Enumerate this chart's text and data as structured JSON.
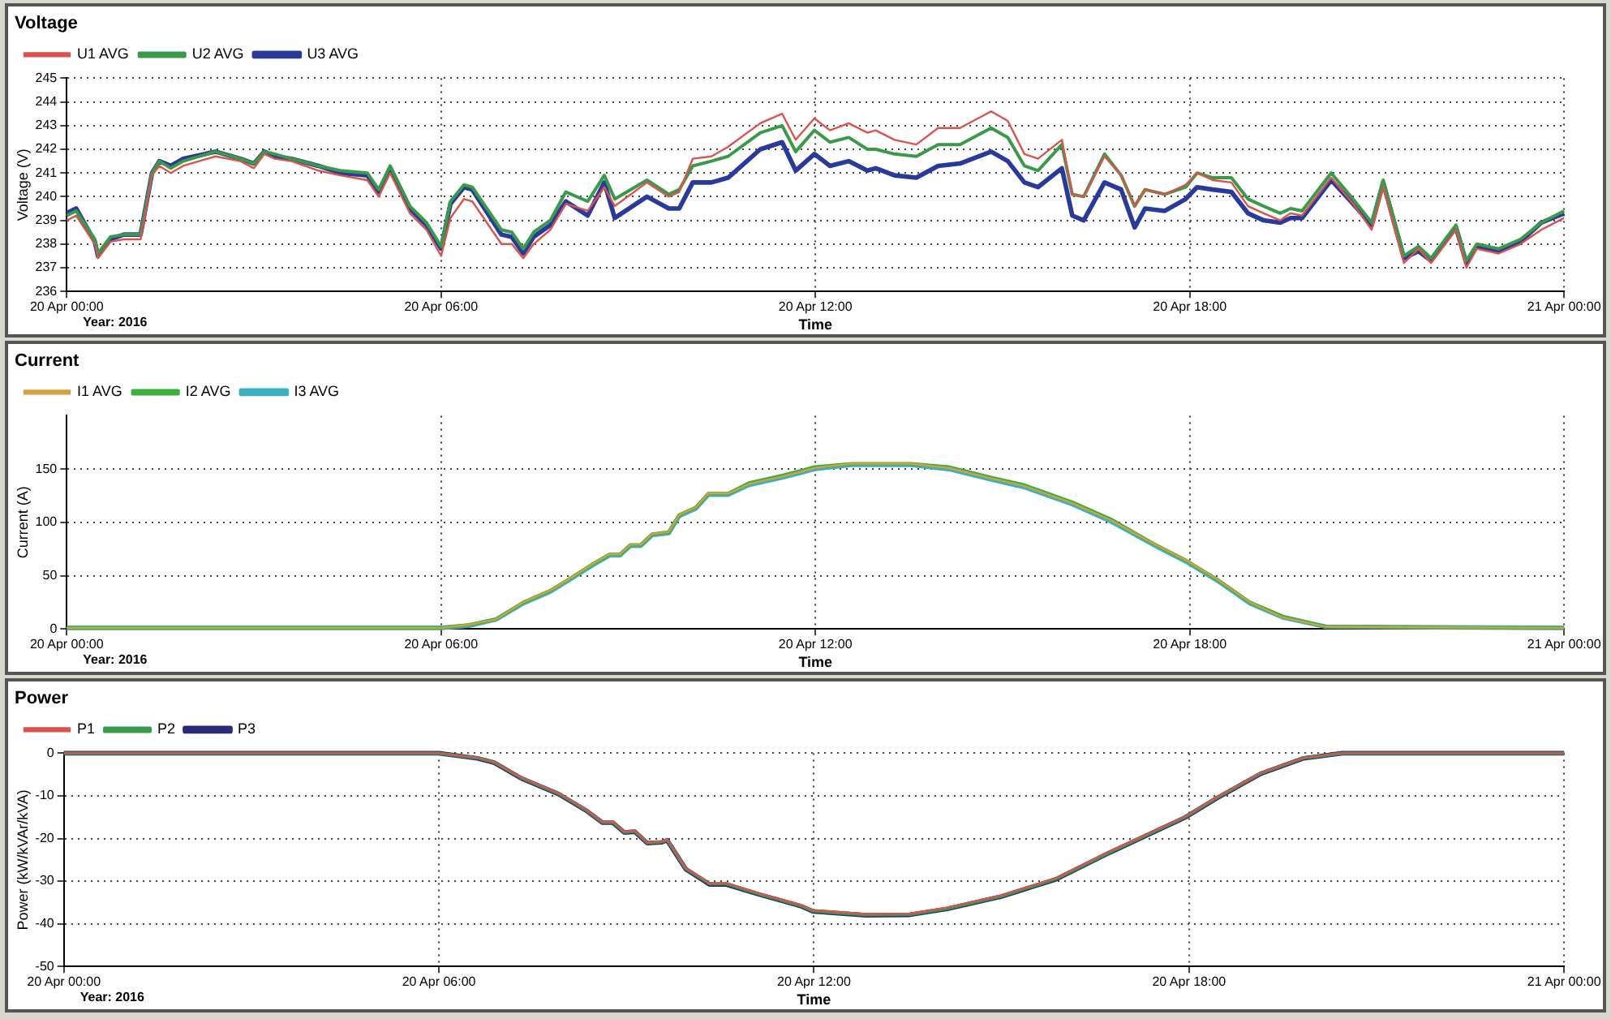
{
  "chart_data": [
    {
      "type": "line",
      "title": "Voltage",
      "xlabel": "Time",
      "ylabel": "Voltage (V)",
      "annotations": [
        "Year: 2016"
      ],
      "x": [
        "2016-04-20T00:00",
        "2016-04-20T00:09",
        "2016-04-20T00:27",
        "2016-04-20T00:30",
        "2016-04-20T00:42",
        "2016-04-20T00:55",
        "2016-04-20T01:11",
        "2016-04-20T01:22",
        "2016-04-20T01:29",
        "2016-04-20T01:40",
        "2016-04-20T01:52",
        "2016-04-20T02:23",
        "2016-04-20T02:47",
        "2016-04-20T03:00",
        "2016-04-20T03:10",
        "2016-04-20T03:20",
        "2016-04-20T03:36",
        "2016-04-20T04:02",
        "2016-04-20T04:23",
        "2016-04-20T04:49",
        "2016-04-20T05:00",
        "2016-04-20T05:11",
        "2016-04-20T05:30",
        "2016-04-20T05:46",
        "2016-04-20T06:00",
        "2016-04-20T06:09",
        "2016-04-20T06:22",
        "2016-04-20T06:30",
        "2016-04-20T06:58",
        "2016-04-20T07:08",
        "2016-04-20T07:19",
        "2016-04-20T07:29",
        "2016-04-20T07:45",
        "2016-04-20T08:00",
        "2016-04-20T08:21",
        "2016-04-20T08:37",
        "2016-04-20T08:47",
        "2016-04-20T09:18",
        "2016-04-20T09:39",
        "2016-04-20T09:49",
        "2016-04-20T10:02",
        "2016-04-20T10:20",
        "2016-04-20T10:36",
        "2016-04-20T11:07",
        "2016-04-20T11:28",
        "2016-04-20T11:41",
        "2016-04-20T11:59",
        "2016-04-20T12:14",
        "2016-04-20T12:32",
        "2016-04-20T12:50",
        "2016-04-20T12:58",
        "2016-04-20T13:16",
        "2016-04-20T13:37",
        "2016-04-20T13:58",
        "2016-04-20T14:19",
        "2016-04-20T14:49",
        "2016-04-20T15:05",
        "2016-04-20T15:21",
        "2016-04-20T15:34",
        "2016-04-20T15:57",
        "2016-04-20T16:07",
        "2016-04-20T16:18",
        "2016-04-20T16:38",
        "2016-04-20T16:54",
        "2016-04-20T17:07",
        "2016-04-20T17:17",
        "2016-04-20T17:36",
        "2016-04-20T17:56",
        "2016-04-20T18:07",
        "2016-04-20T18:22",
        "2016-04-20T18:40",
        "2016-04-20T18:56",
        "2016-04-20T19:11",
        "2016-04-20T19:27",
        "2016-04-20T19:37",
        "2016-04-20T19:48",
        "2016-04-20T20:16",
        "2016-04-20T20:37",
        "2016-04-20T20:55",
        "2016-04-20T21:06",
        "2016-04-20T21:26",
        "2016-04-20T21:40",
        "2016-04-20T21:52",
        "2016-04-20T22:16",
        "2016-04-20T22:26",
        "2016-04-20T22:36",
        "2016-04-20T22:57",
        "2016-04-20T23:18",
        "2016-04-20T23:38",
        "2016-04-21T00:00"
      ],
      "series": [
        {
          "name": "U1 AVG",
          "color": "#d9534f",
          "values": [
            239.0,
            239.2,
            238.0,
            237.4,
            238.1,
            238.2,
            238.2,
            240.9,
            241.3,
            241.0,
            241.3,
            241.7,
            241.5,
            241.2,
            241.8,
            241.6,
            241.5,
            241.1,
            240.9,
            240.7,
            240.0,
            241.0,
            239.3,
            238.6,
            237.5,
            239.1,
            239.9,
            239.8,
            238.0,
            238.0,
            237.4,
            238.0,
            238.6,
            239.7,
            239.4,
            240.4,
            239.6,
            240.6,
            240.0,
            240.2,
            241.6,
            241.7,
            242.1,
            243.1,
            243.5,
            242.4,
            243.3,
            242.8,
            243.1,
            242.7,
            242.8,
            242.4,
            242.2,
            242.9,
            242.9,
            243.6,
            243.2,
            241.8,
            241.6,
            242.4,
            240.1,
            240.0,
            241.7,
            240.9,
            239.6,
            240.3,
            240.1,
            240.5,
            241.0,
            240.7,
            240.6,
            239.6,
            239.3,
            239.0,
            239.3,
            239.2,
            240.8,
            239.7,
            238.6,
            240.4,
            237.2,
            237.8,
            237.2,
            238.6,
            237.0,
            237.8,
            237.6,
            238.0,
            238.6,
            239.1
          ]
        },
        {
          "name": "U2 AVG",
          "color": "#3a9a4a",
          "values": [
            239.2,
            239.4,
            238.2,
            237.6,
            238.3,
            238.4,
            238.4,
            241.0,
            241.5,
            241.2,
            241.5,
            241.9,
            241.6,
            241.4,
            241.9,
            241.8,
            241.6,
            241.3,
            241.1,
            241.0,
            240.3,
            241.3,
            239.6,
            238.9,
            237.9,
            239.8,
            240.5,
            240.4,
            238.6,
            238.5,
            237.8,
            238.5,
            239.0,
            240.2,
            239.8,
            240.9,
            239.9,
            240.7,
            240.1,
            240.3,
            241.3,
            241.5,
            241.7,
            242.7,
            243.0,
            241.9,
            242.8,
            242.3,
            242.5,
            242.0,
            242.0,
            241.8,
            241.7,
            242.2,
            242.2,
            242.9,
            242.5,
            241.3,
            241.1,
            242.2,
            240.1,
            240.0,
            241.8,
            240.9,
            239.6,
            240.3,
            240.1,
            240.4,
            241.0,
            240.8,
            240.8,
            239.9,
            239.6,
            239.3,
            239.5,
            239.4,
            241.0,
            239.9,
            238.9,
            240.7,
            237.5,
            237.9,
            237.4,
            238.8,
            237.3,
            238.0,
            237.8,
            238.2,
            238.9,
            239.4
          ]
        },
        {
          "name": "U3 AVG",
          "color": "#2a3a9a",
          "values": [
            239.3,
            239.5,
            238.1,
            237.5,
            238.2,
            238.4,
            238.4,
            241.0,
            241.5,
            241.3,
            241.6,
            241.9,
            241.6,
            241.4,
            241.9,
            241.7,
            241.6,
            241.3,
            241.0,
            240.9,
            240.2,
            241.2,
            239.5,
            238.8,
            237.8,
            239.7,
            240.4,
            240.3,
            238.4,
            238.3,
            237.6,
            238.3,
            238.8,
            239.8,
            239.2,
            240.6,
            239.1,
            240.0,
            239.5,
            239.5,
            240.6,
            240.6,
            240.8,
            242.0,
            242.3,
            241.1,
            241.8,
            241.3,
            241.5,
            241.1,
            241.2,
            240.9,
            240.8,
            241.3,
            241.4,
            241.9,
            241.5,
            240.6,
            240.4,
            241.2,
            239.2,
            239.0,
            240.6,
            240.3,
            238.7,
            239.5,
            239.4,
            239.9,
            240.4,
            240.3,
            240.2,
            239.3,
            239.0,
            238.9,
            239.1,
            239.1,
            240.7,
            239.7,
            238.8,
            240.6,
            237.4,
            237.7,
            237.3,
            238.7,
            237.2,
            237.9,
            237.7,
            238.1,
            238.9,
            239.3
          ]
        }
      ],
      "xlim": [
        "2016-04-20T00:00",
        "2016-04-21T00:00"
      ],
      "xticks": [
        {
          "value": "2016-04-20T00:00",
          "label": "20 Apr 00:00"
        },
        {
          "value": "2016-04-20T06:00",
          "label": "20 Apr 06:00"
        },
        {
          "value": "2016-04-20T12:00",
          "label": "20 Apr 12:00"
        },
        {
          "value": "2016-04-20T18:00",
          "label": "20 Apr 18:00"
        },
        {
          "value": "2016-04-21T00:00",
          "label": "21 Apr 00:00"
        }
      ],
      "ylim": [
        236,
        245
      ],
      "yticks": [
        236,
        237,
        238,
        239,
        240,
        241,
        242,
        243,
        244,
        245
      ],
      "grid": true,
      "legend": "top left",
      "marker": "none",
      "line_style": "solid"
    },
    {
      "type": "line",
      "title": "Current",
      "xlabel": "Time",
      "ylabel": "Current (A)",
      "annotations": [
        "Year: 2016"
      ],
      "x": [
        "2016-04-20T00:00",
        "2016-04-20T06:00",
        "2016-04-20T06:27",
        "2016-04-20T06:53",
        "2016-04-20T07:19",
        "2016-04-20T07:45",
        "2016-04-20T08:05",
        "2016-04-20T08:26",
        "2016-04-20T08:42",
        "2016-04-20T08:52",
        "2016-04-20T09:02",
        "2016-04-20T09:12",
        "2016-04-20T09:23",
        "2016-04-20T09:39",
        "2016-04-20T09:49",
        "2016-04-20T10:05",
        "2016-04-20T10:17",
        "2016-04-20T10:36",
        "2016-04-20T10:56",
        "2016-04-20T11:28",
        "2016-04-20T11:48",
        "2016-04-20T11:59",
        "2016-04-20T12:35",
        "2016-04-20T13:32",
        "2016-04-20T14:08",
        "2016-04-20T14:50",
        "2016-04-20T15:21",
        "2016-04-20T16:07",
        "2016-04-20T16:44",
        "2016-04-20T17:25",
        "2016-04-20T17:57",
        "2016-04-20T18:27",
        "2016-04-20T18:58",
        "2016-04-20T19:29",
        "2016-04-20T20:11",
        "2016-04-21T00:00"
      ],
      "series": [
        {
          "name": "I1 AVG",
          "color": "#d4a040",
          "values": [
            1,
            1,
            4,
            9,
            25,
            36,
            48,
            61,
            70,
            70,
            79,
            79,
            89,
            91,
            107,
            114,
            127,
            127,
            136,
            143,
            148,
            151,
            155,
            155,
            151,
            141,
            134,
            118,
            102,
            80,
            64,
            46,
            25,
            11,
            2,
            1
          ]
        },
        {
          "name": "I2 AVG",
          "color": "#3cae3c",
          "values": [
            1,
            1,
            4,
            9,
            25,
            36,
            48,
            61,
            70,
            70,
            79,
            79,
            89,
            91,
            107,
            114,
            127,
            127,
            137,
            144,
            149,
            152,
            155,
            155,
            152,
            142,
            135,
            119,
            103,
            80,
            64,
            46,
            25,
            12,
            2,
            1
          ]
        },
        {
          "name": "I3 AVG",
          "color": "#3ab0c0",
          "values": [
            1,
            1,
            3,
            9,
            24,
            35,
            47,
            60,
            69,
            69,
            78,
            78,
            88,
            90,
            106,
            113,
            126,
            126,
            135,
            142,
            147,
            150,
            154,
            154,
            150,
            140,
            133,
            117,
            101,
            79,
            63,
            45,
            24,
            11,
            2,
            1
          ]
        }
      ],
      "xlim": [
        "2016-04-20T00:00",
        "2016-04-21T00:00"
      ],
      "xticks": [
        {
          "value": "2016-04-20T00:00",
          "label": "20 Apr 00:00"
        },
        {
          "value": "2016-04-20T06:00",
          "label": "20 Apr 06:00"
        },
        {
          "value": "2016-04-20T12:00",
          "label": "20 Apr 12:00"
        },
        {
          "value": "2016-04-20T18:00",
          "label": "20 Apr 18:00"
        },
        {
          "value": "2016-04-21T00:00",
          "label": "21 Apr 00:00"
        }
      ],
      "ylim": [
        0,
        200
      ],
      "yticks": [
        0,
        50,
        100,
        150
      ],
      "grid": true,
      "legend": "top left",
      "marker": "none",
      "line_style": "solid"
    },
    {
      "type": "line",
      "title": "Power",
      "xlabel": "Time",
      "ylabel": "Power (kW/kVAr/kVA)",
      "annotations": [
        "Year: 2016"
      ],
      "x": [
        "2016-04-20T00:00",
        "2016-04-20T06:00",
        "2016-04-20T06:37",
        "2016-04-20T06:53",
        "2016-04-20T07:19",
        "2016-04-20T07:55",
        "2016-04-20T08:21",
        "2016-04-20T08:37",
        "2016-04-20T08:47",
        "2016-04-20T08:58",
        "2016-04-20T09:08",
        "2016-04-20T09:20",
        "2016-04-20T09:34",
        "2016-04-20T09:39",
        "2016-04-20T09:57",
        "2016-04-20T10:20",
        "2016-04-20T10:36",
        "2016-04-20T11:07",
        "2016-04-20T11:48",
        "2016-04-20T11:59",
        "2016-04-20T12:50",
        "2016-04-20T13:32",
        "2016-04-20T14:08",
        "2016-04-20T15:00",
        "2016-04-20T15:52",
        "2016-04-20T16:44",
        "2016-04-20T17:56",
        "2016-04-20T18:27",
        "2016-04-20T19:09",
        "2016-04-20T19:50",
        "2016-04-20T20:27",
        "2016-04-21T00:00"
      ],
      "series": [
        {
          "name": "P1",
          "color": "#d9534f",
          "values": [
            0,
            0,
            -1.1,
            -2.1,
            -5.7,
            -9.4,
            -13.2,
            -16.1,
            -16.1,
            -18.4,
            -18.2,
            -20.9,
            -20.7,
            -20.2,
            -27,
            -30.5,
            -30.5,
            -32.8,
            -35.6,
            -36.8,
            -37.7,
            -37.6,
            -36.2,
            -33.3,
            -29.3,
            -23,
            -14.9,
            -10.3,
            -4.6,
            -1.1,
            0,
            0
          ]
        },
        {
          "name": "P2",
          "color": "#3a9a4a",
          "values": [
            0,
            0,
            -1.1,
            -2.1,
            -5.8,
            -9.5,
            -13.3,
            -16.2,
            -16.2,
            -18.5,
            -18.3,
            -21,
            -20.8,
            -20.3,
            -27.1,
            -30.6,
            -30.6,
            -33,
            -35.8,
            -37,
            -37.9,
            -37.8,
            -36.4,
            -33.5,
            -29.5,
            -23.2,
            -15,
            -10.4,
            -4.7,
            -1.1,
            0,
            0
          ]
        },
        {
          "name": "P3",
          "color": "#2a2a7a",
          "values": [
            0,
            0,
            -1.2,
            -2.2,
            -5.9,
            -9.6,
            -13.4,
            -16.3,
            -16.3,
            -18.6,
            -18.4,
            -21.1,
            -20.9,
            -20.4,
            -27.2,
            -30.8,
            -30.8,
            -33.1,
            -35.9,
            -37.1,
            -38,
            -37.9,
            -36.5,
            -33.6,
            -29.6,
            -23.3,
            -15.1,
            -10.5,
            -4.8,
            -1.2,
            0,
            0
          ]
        }
      ],
      "xlim": [
        "2016-04-20T00:00",
        "2016-04-21T00:00"
      ],
      "xticks": [
        {
          "value": "2016-04-20T00:00",
          "label": "20 Apr 00:00"
        },
        {
          "value": "2016-04-20T06:00",
          "label": "20 Apr 06:00"
        },
        {
          "value": "2016-04-20T12:00",
          "label": "20 Apr 12:00"
        },
        {
          "value": "2016-04-20T18:00",
          "label": "20 Apr 18:00"
        },
        {
          "value": "2016-04-21T00:00",
          "label": "21 Apr 00:00"
        }
      ],
      "ylim": [
        -50,
        0
      ],
      "yticks": [
        -50,
        -40,
        -30,
        -20,
        -10,
        0
      ],
      "grid": true,
      "legend": "top left",
      "marker": "none",
      "line_style": "solid"
    }
  ]
}
